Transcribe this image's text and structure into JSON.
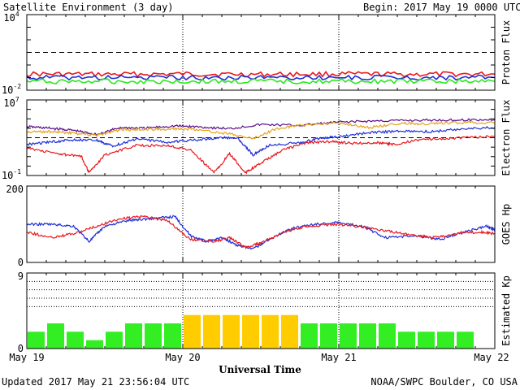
{
  "header": {
    "title": "Satellite Environment (3 day)",
    "begin_label": "Begin:",
    "begin_value": "2017 May 19 0000 UTC"
  },
  "footer": {
    "updated": "Updated 2017 May 21 23:56:04 UTC",
    "credit": "NOAA/SWPC Boulder, CO USA"
  },
  "x_axis": {
    "label": "Universal Time",
    "ticks": [
      "May 19",
      "May 20",
      "May 21",
      "May 22"
    ],
    "range_days": [
      0,
      3
    ]
  },
  "colors": {
    "red": "#e8191e",
    "blue": "#1f2ed6",
    "green": "#2be81e",
    "orange": "#e6a21a",
    "purple": "#5a0f8c",
    "kp_green": "#33ee22",
    "kp_yellow": "#ffcc00"
  },
  "chart_data": [
    {
      "type": "line",
      "name": "proton-flux",
      "ylabel": "Proton Flux",
      "yscale": "log",
      "ylim": [
        0.01,
        10000
      ],
      "y_tick_labels": [
        {
          "base": "10",
          "exp": "4"
        },
        {
          "base": "10",
          "exp": "-2"
        }
      ],
      "threshold": 10,
      "series": [
        {
          "color": "red",
          "x": [
            0,
            0.5,
            1,
            1.5,
            2,
            2.5,
            3
          ],
          "y": [
            0.19,
            0.18,
            0.19,
            0.18,
            0.19,
            0.18,
            0.19
          ]
        },
        {
          "color": "blue",
          "x": [
            0,
            0.5,
            1,
            1.5,
            2,
            2.5,
            3
          ],
          "y": [
            0.1,
            0.1,
            0.1,
            0.1,
            0.1,
            0.1,
            0.1
          ]
        },
        {
          "color": "green",
          "x": [
            0,
            0.5,
            1,
            1.5,
            2,
            2.5,
            3
          ],
          "y": [
            0.05,
            0.05,
            0.05,
            0.05,
            0.05,
            0.05,
            0.05
          ]
        }
      ]
    },
    {
      "type": "line",
      "name": "electron-flux",
      "ylabel": "Electron Flux",
      "yscale": "log",
      "ylim": [
        0.1,
        10000000
      ],
      "y_tick_labels": [
        {
          "base": "10",
          "exp": "7"
        },
        {
          "base": "10",
          "exp": "-1"
        }
      ],
      "threshold": 1000,
      "series": [
        {
          "color": "purple",
          "x": [
            0,
            0.15,
            0.3,
            0.45,
            0.6,
            0.75,
            0.95,
            1.1,
            1.3,
            1.5,
            1.75,
            2.0,
            2.25,
            2.5,
            2.75,
            3.0
          ],
          "y": [
            15000,
            10000,
            6000,
            2200,
            12000,
            10000,
            18000,
            14000,
            9000,
            25000,
            20000,
            45000,
            60000,
            70000,
            75000,
            80000
          ]
        },
        {
          "color": "orange",
          "x": [
            0,
            0.15,
            0.3,
            0.45,
            0.6,
            0.75,
            0.95,
            1.1,
            1.3,
            1.45,
            1.6,
            1.75,
            2.0,
            2.2,
            2.4,
            2.55,
            2.75,
            3.0
          ],
          "y": [
            4000,
            4500,
            3000,
            1800,
            7000,
            7000,
            9000,
            7000,
            2500,
            800,
            9000,
            20000,
            35000,
            12000,
            35000,
            30000,
            40000,
            40000
          ]
        },
        {
          "color": "blue",
          "x": [
            0,
            0.15,
            0.3,
            0.45,
            0.55,
            0.7,
            0.9,
            1.05,
            1.2,
            1.35,
            1.45,
            1.55,
            1.75,
            1.9,
            2.0,
            2.2,
            2.4,
            2.6,
            2.8,
            3.0
          ],
          "y": [
            200,
            350,
            600,
            500,
            130,
            700,
            350,
            500,
            900,
            1000,
            15,
            150,
            300,
            1000,
            1200,
            3500,
            5000,
            4500,
            9000,
            12000
          ]
        },
        {
          "color": "red",
          "x": [
            0,
            0.2,
            0.35,
            0.4,
            0.5,
            0.7,
            0.9,
            1.05,
            1.2,
            1.3,
            1.4,
            1.5,
            1.65,
            1.8,
            1.95,
            2.1,
            2.25,
            2.35,
            2.55,
            2.75,
            3.0
          ],
          "y": [
            80,
            20,
            10,
            0.2,
            15,
            150,
            150,
            50,
            0.2,
            20,
            0.2,
            2,
            60,
            300,
            400,
            250,
            300,
            200,
            700,
            900,
            1500
          ]
        }
      ]
    },
    {
      "type": "line",
      "name": "goes-hp",
      "ylabel": "GOES Hp",
      "ylim": [
        0,
        200
      ],
      "y_tick_labels": [
        "200",
        "0"
      ],
      "series": [
        {
          "color": "blue",
          "x": [
            0,
            0.15,
            0.3,
            0.4,
            0.5,
            0.65,
            0.8,
            0.95,
            1.05,
            1.15,
            1.25,
            1.35,
            1.45,
            1.55,
            1.7,
            1.85,
            2.0,
            2.15,
            2.3,
            2.5,
            2.65,
            2.8,
            2.95,
            3.0
          ],
          "y": [
            100,
            100,
            95,
            55,
            95,
            110,
            115,
            120,
            70,
            55,
            65,
            45,
            35,
            60,
            90,
            100,
            105,
            95,
            65,
            70,
            60,
            80,
            95,
            85
          ]
        },
        {
          "color": "red",
          "x": [
            0,
            0.15,
            0.3,
            0.45,
            0.6,
            0.75,
            0.9,
            1.05,
            1.2,
            1.3,
            1.4,
            1.5,
            1.65,
            1.8,
            2.0,
            2.2,
            2.35,
            2.5,
            2.6,
            2.75,
            2.9,
            3.0
          ],
          "y": [
            80,
            65,
            75,
            95,
            115,
            120,
            110,
            60,
            55,
            65,
            40,
            50,
            80,
            95,
            100,
            90,
            80,
            70,
            65,
            75,
            80,
            75
          ]
        }
      ]
    },
    {
      "type": "bar",
      "name": "estimated-kp",
      "ylabel": "Estimated Kp",
      "ylim": [
        0,
        9
      ],
      "y_tick_labels": [
        "9",
        "0"
      ],
      "values": [
        2,
        3,
        2,
        1,
        2,
        3,
        3,
        3,
        4,
        4,
        4,
        4,
        4,
        4,
        3,
        3,
        3,
        3,
        3,
        2,
        2,
        2,
        2
      ],
      "colors": [
        "kp_green",
        "kp_green",
        "kp_green",
        "kp_green",
        "kp_green",
        "kp_green",
        "kp_green",
        "kp_green",
        "kp_yellow",
        "kp_yellow",
        "kp_yellow",
        "kp_yellow",
        "kp_yellow",
        "kp_yellow",
        "kp_green",
        "kp_green",
        "kp_green",
        "kp_green",
        "kp_green",
        "kp_green",
        "kp_green",
        "kp_green",
        "kp_green"
      ]
    }
  ]
}
